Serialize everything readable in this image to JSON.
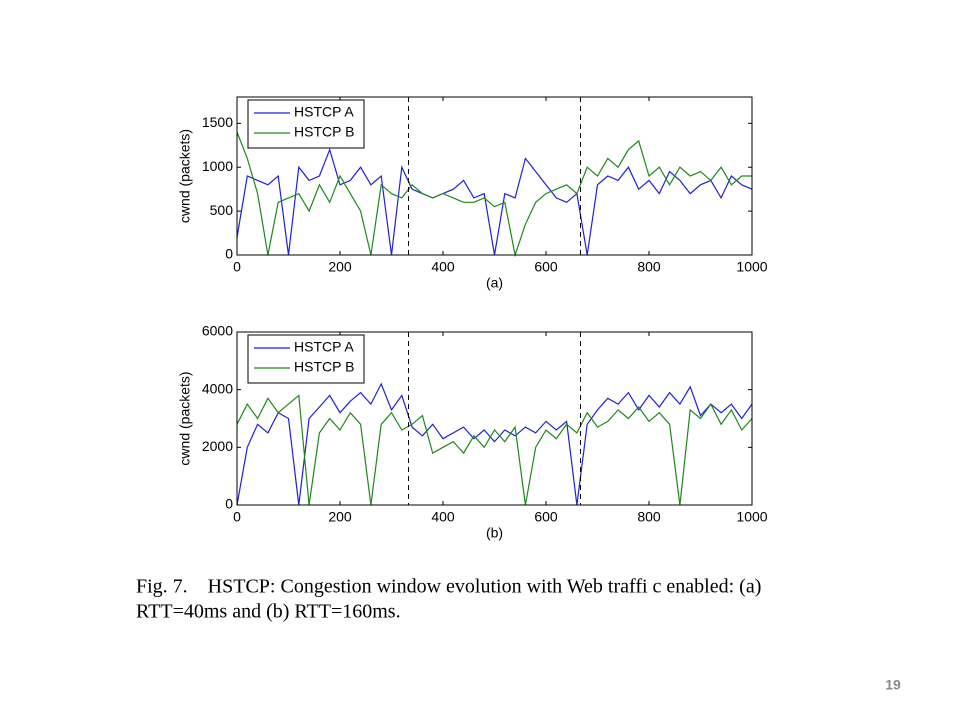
{
  "chart_data": [
    {
      "type": "line",
      "ylabel": "cwnd (packets)",
      "xlabel": "(a)",
      "xlim": [
        0,
        1000
      ],
      "xticks": [
        0,
        200,
        400,
        600,
        800,
        1000
      ],
      "ylim": [
        0,
        1800
      ],
      "yticks": [
        0,
        500,
        1000,
        1500
      ],
      "vlines": [
        333,
        667
      ],
      "legend": "upper left",
      "x": [
        0,
        20,
        40,
        60,
        80,
        100,
        120,
        140,
        160,
        180,
        200,
        220,
        240,
        260,
        280,
        300,
        320,
        340,
        360,
        380,
        400,
        420,
        440,
        460,
        480,
        500,
        520,
        540,
        560,
        580,
        600,
        620,
        640,
        660,
        680,
        700,
        720,
        740,
        760,
        780,
        800,
        820,
        840,
        860,
        880,
        900,
        920,
        940,
        960,
        980,
        1000
      ],
      "series": [
        {
          "name": "HSTCP A",
          "color": "#1f1fe0",
          "values": [
            200,
            900,
            850,
            800,
            900,
            0,
            1000,
            850,
            900,
            1200,
            800,
            850,
            1000,
            800,
            900,
            0,
            1000,
            750,
            700,
            650,
            700,
            750,
            850,
            650,
            700,
            0,
            700,
            650,
            1100,
            950,
            800,
            650,
            600,
            700,
            0,
            800,
            900,
            850,
            1000,
            750,
            850,
            700,
            950,
            850,
            700,
            800,
            850,
            650,
            900,
            800,
            750
          ]
        },
        {
          "name": "HSTCP B",
          "color": "#1a8a1a",
          "values": [
            1400,
            1100,
            700,
            0,
            600,
            650,
            700,
            500,
            800,
            600,
            900,
            700,
            500,
            0,
            800,
            700,
            650,
            800,
            700,
            650,
            700,
            650,
            600,
            600,
            650,
            550,
            600,
            0,
            350,
            600,
            700,
            750,
            800,
            700,
            1000,
            900,
            1100,
            1000,
            1200,
            1300,
            900,
            1000,
            800,
            1000,
            900,
            950,
            850,
            1000,
            800,
            900,
            900
          ]
        }
      ]
    },
    {
      "type": "line",
      "ylabel": "cwnd (packets)",
      "xlabel": "(b)",
      "xlim": [
        0,
        1000
      ],
      "xticks": [
        0,
        200,
        400,
        600,
        800,
        1000
      ],
      "ylim": [
        0,
        6000
      ],
      "yticks": [
        0,
        2000,
        4000,
        6000
      ],
      "vlines": [
        333,
        667
      ],
      "legend": "upper left",
      "x": [
        0,
        20,
        40,
        60,
        80,
        100,
        120,
        140,
        160,
        180,
        200,
        220,
        240,
        260,
        280,
        300,
        320,
        340,
        360,
        380,
        400,
        420,
        440,
        460,
        480,
        500,
        520,
        540,
        560,
        580,
        600,
        620,
        640,
        660,
        680,
        700,
        720,
        740,
        760,
        780,
        800,
        820,
        840,
        860,
        880,
        900,
        920,
        940,
        960,
        980,
        1000
      ],
      "series": [
        {
          "name": "HSTCP A",
          "color": "#1f1fe0",
          "values": [
            0,
            2000,
            2800,
            2500,
            3200,
            3000,
            0,
            3000,
            3400,
            3800,
            3200,
            3600,
            3900,
            3500,
            4200,
            3300,
            3800,
            2700,
            2400,
            2800,
            2300,
            2500,
            2700,
            2300,
            2600,
            2200,
            2600,
            2400,
            2700,
            2500,
            2900,
            2600,
            2900,
            0,
            2800,
            3300,
            3700,
            3500,
            3900,
            3300,
            3800,
            3400,
            3900,
            3500,
            4100,
            3100,
            3500,
            3200,
            3500,
            3000,
            3500
          ]
        },
        {
          "name": "HSTCP B",
          "color": "#1a8a1a",
          "values": [
            2800,
            3500,
            3000,
            3700,
            3200,
            3500,
            3800,
            0,
            2500,
            3000,
            2600,
            3200,
            2800,
            0,
            2800,
            3200,
            2600,
            2800,
            3100,
            1800,
            2000,
            2200,
            1800,
            2400,
            2000,
            2600,
            2200,
            2700,
            0,
            2000,
            2600,
            2300,
            2800,
            2500,
            3200,
            2700,
            2900,
            3300,
            3000,
            3400,
            2900,
            3200,
            2800,
            0,
            3300,
            3000,
            3500,
            2800,
            3300,
            2600,
            3000
          ]
        }
      ]
    }
  ],
  "caption": {
    "lines": [
      "Fig. 7.    HSTCP: Congestion window evolution with Web traffi c enabled: (a)",
      "RTT=40ms and (b) RTT=160ms."
    ]
  },
  "page_number": "19"
}
